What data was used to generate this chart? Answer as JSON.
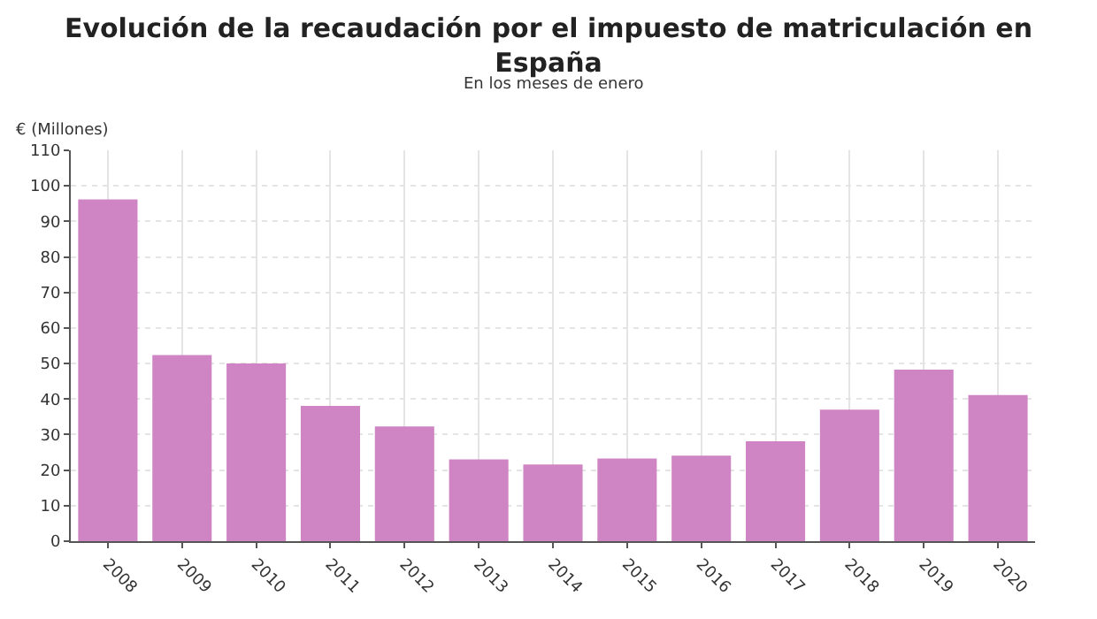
{
  "chart_data": {
    "type": "bar",
    "title": "Evolución de la recaudación por el impuesto de matriculación en España",
    "subtitle": "En los meses de enero",
    "ylabel": "€ (Millones)",
    "categories": [
      "2008",
      "2009",
      "2010",
      "2011",
      "2012",
      "2013",
      "2014",
      "2015",
      "2016",
      "2017",
      "2018",
      "2019",
      "2020"
    ],
    "values": [
      96.2,
      52.4,
      50,
      38.1,
      32.3,
      23,
      21.6,
      23.3,
      24.1,
      28.1,
      37,
      48.3,
      41.1
    ],
    "color": "#cf85c4",
    "ylim": [
      0,
      110
    ],
    "yticks": [
      0,
      10,
      20,
      30,
      40,
      50,
      60,
      70,
      80,
      90,
      100,
      110
    ],
    "grid": true
  }
}
